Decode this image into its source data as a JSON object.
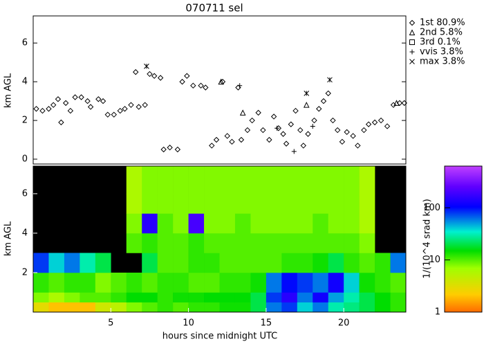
{
  "chart_data": [
    {
      "type": "scatter",
      "title": "070711 sel",
      "ylabel": "km AGL",
      "xlim": [
        0,
        24
      ],
      "ylim": [
        -0.25,
        7.4
      ],
      "yticks": [
        0,
        2,
        4,
        6
      ],
      "legend": "right",
      "series": [
        {
          "name": "1st 80.9%",
          "marker": "diamond",
          "color": "#000000",
          "x": [
            0.2,
            0.6,
            1.0,
            1.3,
            1.6,
            1.8,
            2.1,
            2.4,
            2.7,
            3.1,
            3.5,
            3.7,
            4.2,
            4.5,
            4.8,
            5.2,
            5.6,
            5.9,
            6.3,
            6.6,
            6.8,
            7.2,
            7.5,
            7.8,
            8.2,
            8.4,
            8.8,
            9.3,
            9.6,
            9.9,
            10.3,
            10.8,
            11.1,
            11.5,
            11.8,
            12.2,
            12.5,
            12.8,
            13.2,
            13.4,
            13.8,
            14.1,
            14.5,
            14.8,
            15.2,
            15.5,
            15.8,
            16.1,
            16.3,
            16.6,
            16.9,
            17.2,
            17.4,
            17.7,
            18.1,
            18.4,
            18.7,
            19.0,
            19.3,
            19.6,
            19.9,
            20.2,
            20.6,
            20.9,
            21.3,
            21.6,
            22.0,
            22.4,
            22.8,
            23.2,
            23.6,
            23.9
          ],
          "y": [
            2.6,
            2.5,
            2.6,
            2.8,
            3.1,
            1.9,
            2.9,
            2.5,
            3.2,
            3.2,
            3.0,
            2.7,
            3.1,
            3.0,
            2.3,
            2.3,
            2.5,
            2.6,
            2.8,
            4.5,
            2.7,
            2.8,
            4.4,
            4.3,
            4.2,
            0.5,
            0.6,
            0.5,
            4.0,
            4.3,
            3.8,
            3.8,
            3.7,
            0.7,
            1.0,
            4.0,
            1.2,
            0.9,
            3.7,
            1.0,
            1.5,
            2.0,
            2.4,
            1.5,
            1.0,
            2.2,
            1.6,
            1.3,
            0.8,
            1.8,
            2.5,
            1.5,
            0.7,
            1.3,
            2.0,
            2.6,
            3.0,
            3.4,
            2.0,
            1.5,
            0.9,
            1.4,
            1.2,
            0.7,
            1.5,
            1.8,
            1.9,
            2.0,
            1.7,
            2.8,
            2.9,
            2.9
          ]
        },
        {
          "name": "2nd 5.8%",
          "marker": "triangle",
          "color": "#000000",
          "x": [
            12.1,
            13.5,
            17.6,
            23.4
          ],
          "y": [
            4.0,
            2.4,
            2.8,
            2.9
          ]
        },
        {
          "name": "3rd 0.1%",
          "marker": "square",
          "color": "#000000",
          "x": [],
          "y": []
        },
        {
          "name": "vvis 3.8%",
          "marker": "plus",
          "color": "#000000",
          "x": [
            13.3,
            15.7,
            16.8,
            18.0
          ],
          "y": [
            3.8,
            1.6,
            0.4,
            1.7
          ]
        },
        {
          "name": "max 3.8%",
          "marker": "x",
          "color": "#000000",
          "x": [
            7.3,
            17.6,
            19.1
          ],
          "y": [
            4.8,
            3.4,
            4.1
          ]
        }
      ]
    },
    {
      "type": "heatmap",
      "xlabel": "hours since midnight UTC",
      "ylabel": "km AGL",
      "xlim": [
        0,
        24
      ],
      "ylim": [
        0,
        7.4
      ],
      "xticks": [
        5,
        10,
        15,
        20
      ],
      "yticks": [
        2,
        4,
        6
      ],
      "x_bins": [
        0,
        1,
        2,
        3,
        4,
        5,
        6,
        7,
        8,
        9,
        10,
        11,
        12,
        13,
        14,
        15,
        16,
        17,
        18,
        19,
        20,
        21,
        22,
        23,
        24
      ],
      "y_bins": [
        0,
        0.5,
        1,
        2,
        3,
        4,
        5,
        6,
        7.4
      ],
      "values": [
        [
          3,
          2,
          2,
          2,
          4,
          5,
          8,
          10,
          12,
          10,
          12,
          12,
          14,
          14,
          20,
          60,
          80,
          40,
          60,
          30,
          25,
          20,
          15,
          12
        ],
        [
          8,
          6,
          8,
          10,
          10,
          12,
          15,
          15,
          12,
          14,
          14,
          15,
          15,
          15,
          20,
          80,
          150,
          60,
          120,
          50,
          30,
          20,
          15,
          12
        ],
        [
          12,
          10,
          12,
          12,
          8,
          10,
          12,
          10,
          12,
          12,
          10,
          10,
          12,
          12,
          14,
          60,
          100,
          80,
          60,
          120,
          40,
          14,
          12,
          10
        ],
        [
          80,
          40,
          60,
          30,
          20,
          null,
          null,
          20,
          10,
          10,
          12,
          12,
          10,
          10,
          10,
          10,
          12,
          12,
          14,
          20,
          12,
          10,
          12,
          60
        ],
        [
          null,
          null,
          null,
          null,
          null,
          null,
          10,
          12,
          10,
          10,
          12,
          10,
          10,
          10,
          10,
          10,
          10,
          10,
          10,
          10,
          10,
          8,
          null,
          null
        ],
        [
          null,
          null,
          null,
          null,
          null,
          null,
          8,
          150,
          10,
          8,
          200,
          8,
          8,
          10,
          8,
          8,
          8,
          8,
          10,
          8,
          8,
          6,
          null,
          null
        ],
        [
          null,
          null,
          null,
          null,
          null,
          null,
          6,
          8,
          8,
          8,
          8,
          8,
          8,
          8,
          8,
          8,
          8,
          8,
          8,
          8,
          8,
          6,
          null,
          null
        ],
        [
          null,
          null,
          null,
          null,
          null,
          null,
          6,
          8,
          8,
          8,
          8,
          8,
          8,
          8,
          8,
          8,
          8,
          8,
          8,
          8,
          8,
          6,
          null,
          null
        ]
      ],
      "log_scale": true,
      "clim": [
        1,
        630
      ],
      "cticks": [
        1,
        10,
        100
      ],
      "clabel": "1/(10^4 srad km)",
      "background": "#000000",
      "colormap": [
        [
          0,
          "#ff6a00"
        ],
        [
          0.12,
          "#ffcc00"
        ],
        [
          0.3,
          "#a0ff00"
        ],
        [
          0.42,
          "#00dd00"
        ],
        [
          0.55,
          "#00f0d0"
        ],
        [
          0.72,
          "#0000ff"
        ],
        [
          0.86,
          "#6000ff"
        ],
        [
          1,
          "#c040ff"
        ]
      ]
    }
  ]
}
